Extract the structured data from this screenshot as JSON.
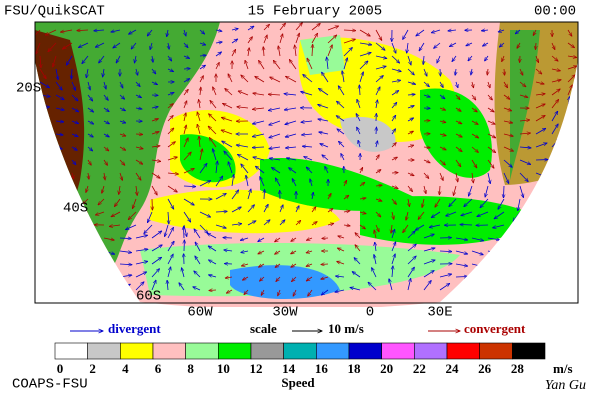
{
  "header": {
    "left": "FSU/QuikSCAT",
    "date": "15 February 2005",
    "time": "00:00"
  },
  "map": {
    "lat_labels": [
      "20S",
      "40S",
      "60S"
    ],
    "lon_labels": [
      "60W",
      "30W",
      "0",
      "30E"
    ]
  },
  "legend": {
    "divergent": "divergent",
    "scale": "scale",
    "scale_value": "10 m/s",
    "convergent": "convergent",
    "divergent_color": "#0000cc",
    "convergent_color": "#aa0000"
  },
  "colorbar": {
    "ticks": [
      0,
      2,
      4,
      6,
      8,
      10,
      12,
      14,
      16,
      18,
      20,
      22,
      24,
      26,
      28
    ],
    "colors": [
      "#ffffff",
      "#c8c8c8",
      "#ffff00",
      "#ffc0c0",
      "#98fb98",
      "#00ee00",
      "#999999",
      "#00b0b0",
      "#3399ff",
      "#0000cc",
      "#ff55ff",
      "#b070ff",
      "#ff0000",
      "#cc3300",
      "#000000"
    ],
    "unit": "m/s",
    "title": "Speed"
  },
  "footer": {
    "left": "COAPS-FSU",
    "signature": "Yan Gu"
  }
}
